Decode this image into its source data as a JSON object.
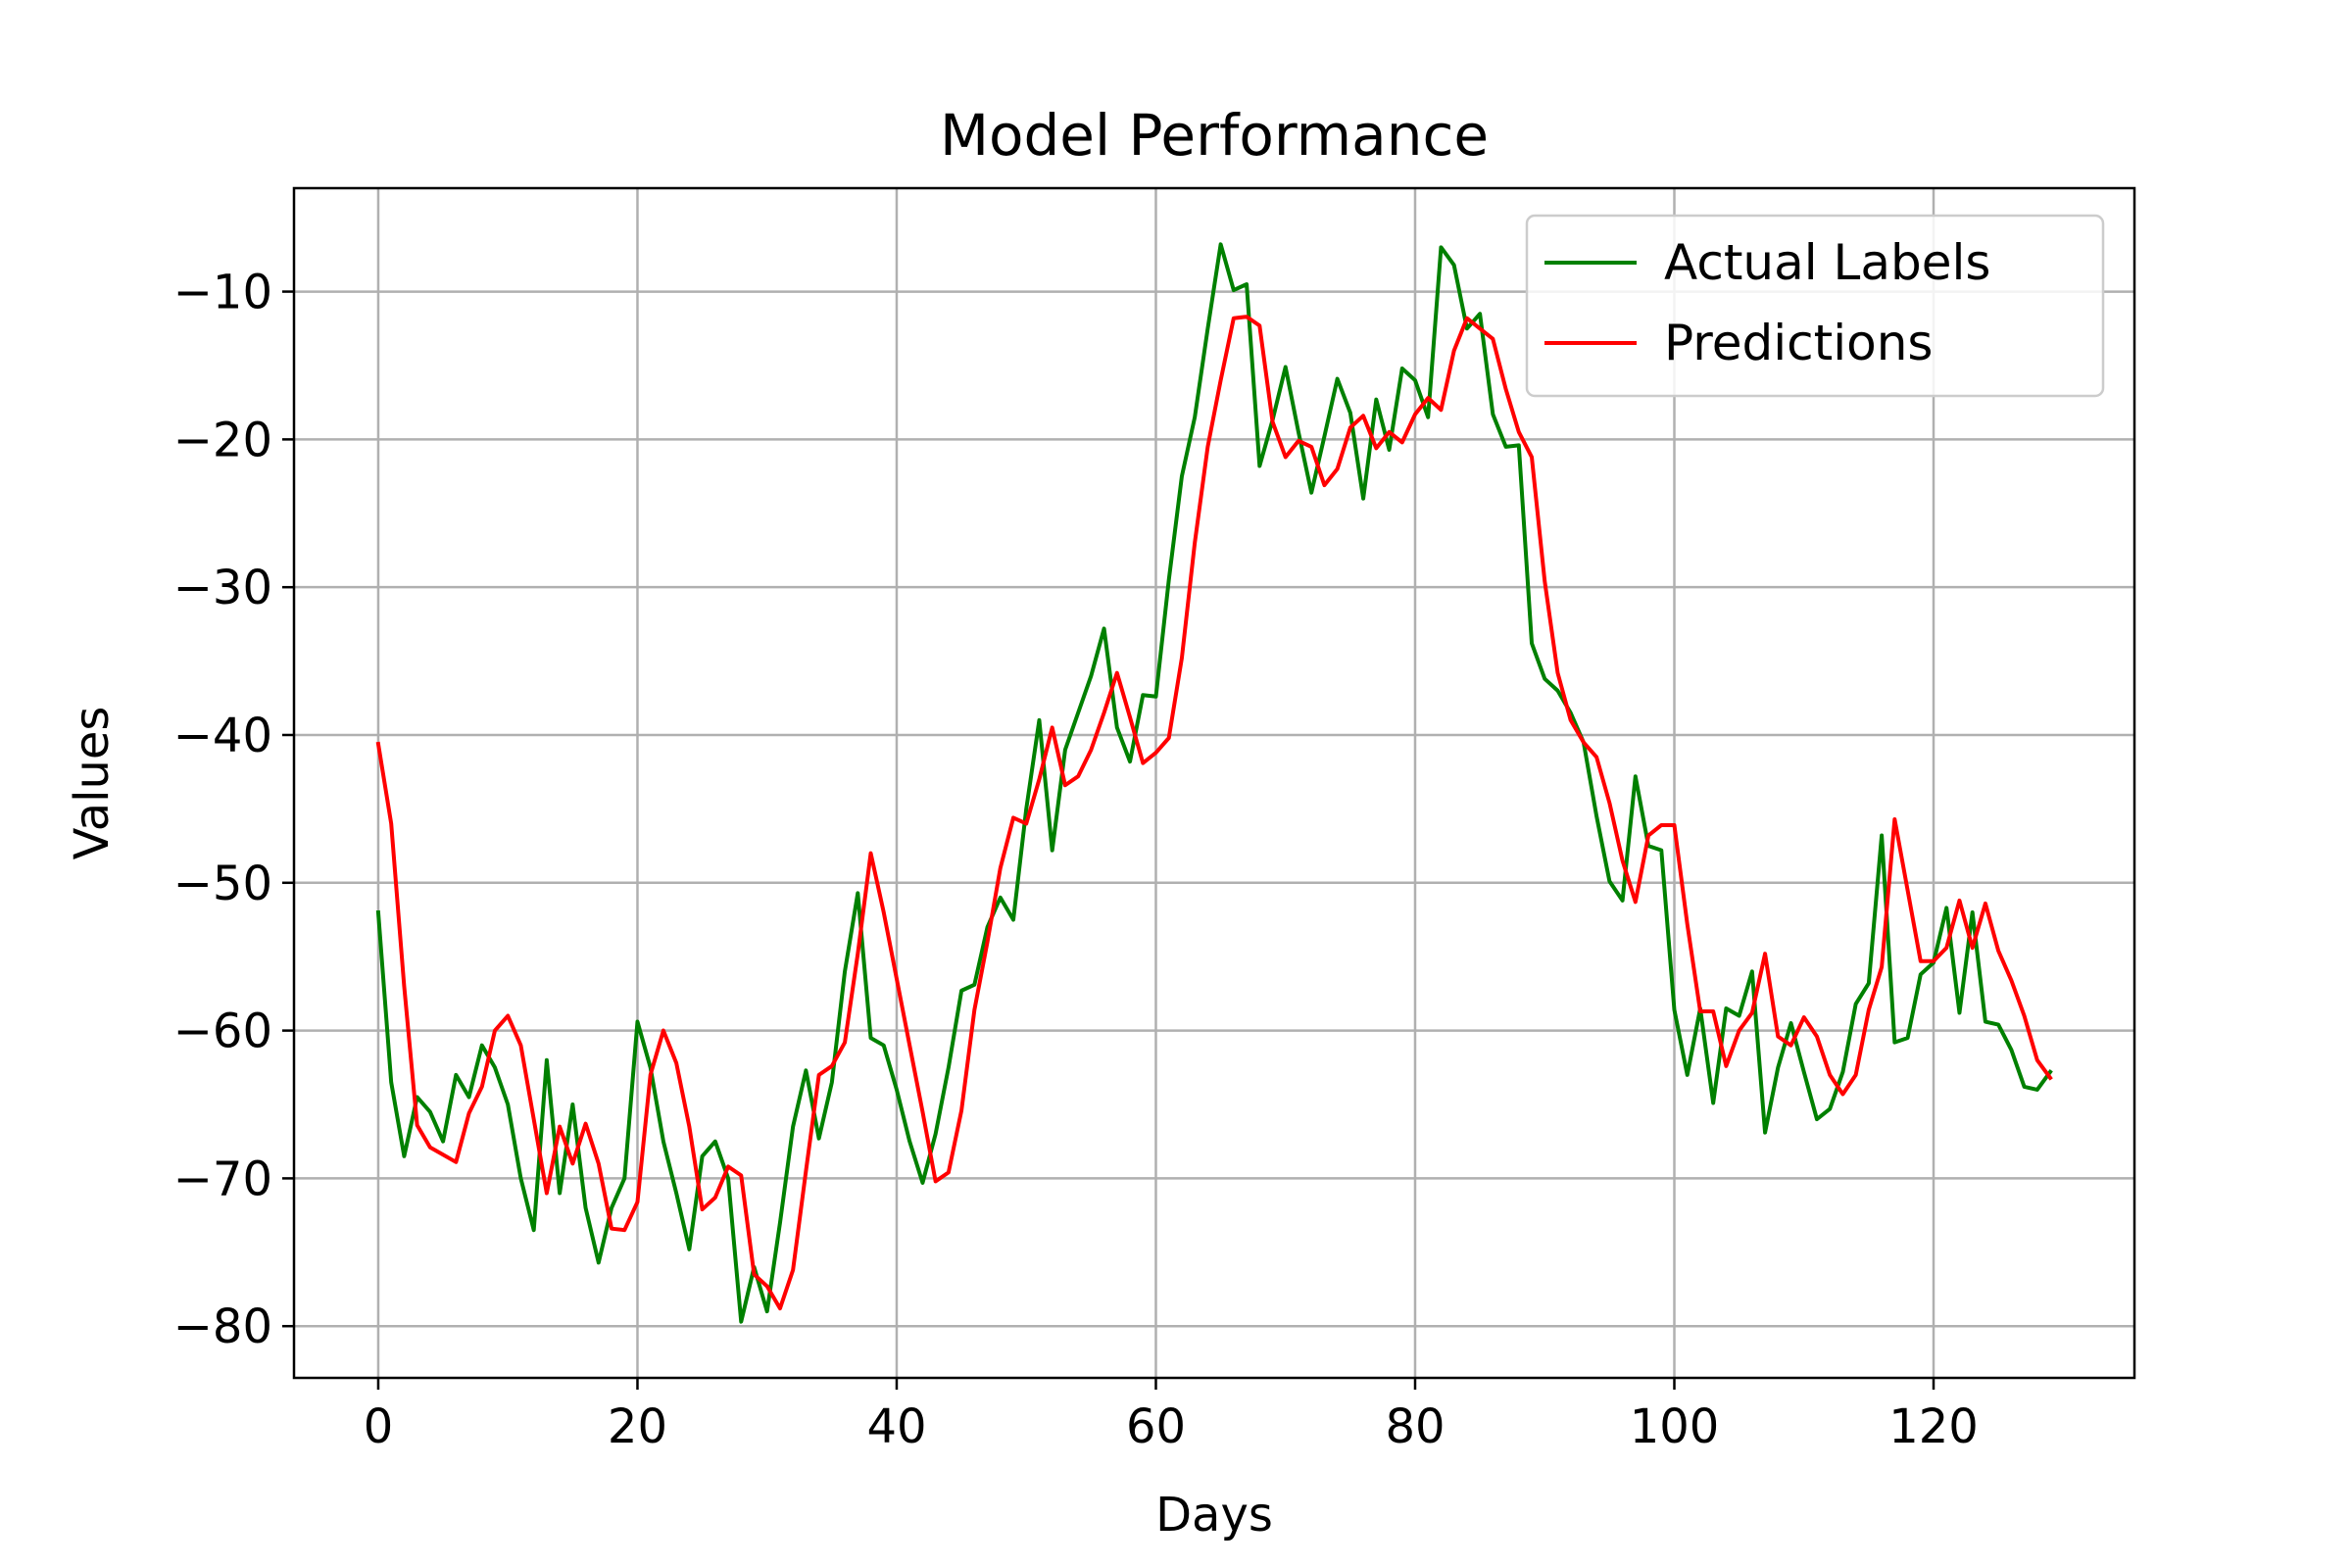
{
  "chart_data": {
    "type": "line",
    "title": "Model Performance",
    "xlabel": "Days",
    "ylabel": "Values",
    "xlim": [
      -6.5,
      135.5
    ],
    "ylim": [
      -83.5,
      -3.0
    ],
    "xticks": [
      0,
      20,
      40,
      60,
      80,
      100,
      120
    ],
    "yticks": [
      -80,
      -70,
      -60,
      -50,
      -40,
      -30,
      -20,
      -10
    ],
    "grid": true,
    "legend_position": "top-right",
    "series": [
      {
        "name": " Actual Labels",
        "color": "#008000",
        "values": [
          -52.0,
          -63.5,
          -68.5,
          -64.5,
          -65.5,
          -67.5,
          -63.0,
          -64.5,
          -61.0,
          -62.5,
          -65.0,
          -70.0,
          -73.5,
          -62.0,
          -71.0,
          -65.0,
          -72.0,
          -75.7,
          -72.0,
          -70.0,
          -59.4,
          -62.5,
          -67.5,
          -71.0,
          -74.8,
          -68.5,
          -67.5,
          -70.0,
          -79.7,
          -76.0,
          -79.0,
          -73.0,
          -66.5,
          -62.7,
          -67.3,
          -63.5,
          -56.0,
          -50.7,
          -60.5,
          -61.0,
          -64.0,
          -67.5,
          -70.3,
          -67.0,
          -62.5,
          -57.3,
          -56.9,
          -53.0,
          -51.0,
          -52.5,
          -45.0,
          -39.0,
          -47.8,
          -41.0,
          -38.5,
          -36.0,
          -32.8,
          -39.5,
          -41.8,
          -37.3,
          -37.4,
          -29.5,
          -22.5,
          -18.5,
          -12.5,
          -6.8,
          -9.9,
          -9.5,
          -21.8,
          -18.7,
          -15.1,
          -19.5,
          -23.6,
          -19.8,
          -15.9,
          -18.2,
          -24.0,
          -17.3,
          -20.7,
          -15.2,
          -16.0,
          -18.5,
          -7.0,
          -8.2,
          -12.5,
          -11.5,
          -18.3,
          -20.5,
          -20.4,
          -33.8,
          -36.2,
          -37.0,
          -38.5,
          -40.5,
          -45.5,
          -49.9,
          -51.2,
          -42.8,
          -47.5,
          -47.8,
          -58.6,
          -63.0,
          -58.5,
          -64.9,
          -58.5,
          -59.0,
          -56.0,
          -66.9,
          -62.5,
          -59.5,
          -62.8,
          -66.0,
          -65.3,
          -62.8,
          -58.2,
          -56.8,
          -46.8,
          -60.8,
          -60.5,
          -56.2,
          -55.4,
          -51.7,
          -58.8,
          -52.0,
          -59.4,
          -59.6,
          -61.3,
          -63.8,
          -64.0,
          -62.8
        ],
        "line_width": 4
      },
      {
        "name": "Predictions",
        "color": "#ff0000",
        "values": [
          -40.6,
          -46.0,
          -57.0,
          -66.4,
          -67.9,
          -68.4,
          -68.9,
          -65.6,
          -63.8,
          -60.0,
          -59.0,
          -61.0,
          -66.0,
          -71.0,
          -66.5,
          -69.0,
          -66.3,
          -69.0,
          -73.4,
          -73.5,
          -71.6,
          -63.0,
          -60.0,
          -62.2,
          -66.5,
          -72.1,
          -71.3,
          -69.2,
          -69.8,
          -76.5,
          -77.3,
          -78.8,
          -76.2,
          -69.5,
          -63.0,
          -62.4,
          -60.8,
          -54.8,
          -48.0,
          -52.0,
          -56.5,
          -61.0,
          -65.5,
          -70.2,
          -69.6,
          -65.4,
          -58.6,
          -54.0,
          -49.0,
          -45.6,
          -46.0,
          -43.0,
          -39.5,
          -43.4,
          -42.8,
          -41.0,
          -38.5,
          -35.8,
          -38.8,
          -41.9,
          -41.2,
          -40.2,
          -34.8,
          -27.0,
          -20.5,
          -16.0,
          -11.8,
          -11.7,
          -12.3,
          -18.8,
          -21.2,
          -20.1,
          -20.5,
          -23.1,
          -22.0,
          -19.2,
          -18.4,
          -20.6,
          -19.5,
          -20.2,
          -18.3,
          -17.2,
          -18.0,
          -14.0,
          -11.8,
          -12.5,
          -13.2,
          -16.6,
          -19.5,
          -21.2,
          -29.6,
          -35.8,
          -39.0,
          -40.5,
          -41.5,
          -44.6,
          -48.5,
          -51.3,
          -46.8,
          -46.1,
          -46.1,
          -52.8,
          -58.7,
          -58.7,
          -62.4,
          -60.0,
          -58.8,
          -54.8,
          -60.4,
          -61.0,
          -59.1,
          -60.4,
          -63.0,
          -64.3,
          -63.0,
          -58.6,
          -55.7,
          -45.7,
          -50.5,
          -55.3,
          -55.3,
          -54.4,
          -51.2,
          -54.4,
          -51.4,
          -54.6,
          -56.6,
          -59.0,
          -62.0,
          -63.2
        ],
        "line_width": 4
      }
    ]
  }
}
